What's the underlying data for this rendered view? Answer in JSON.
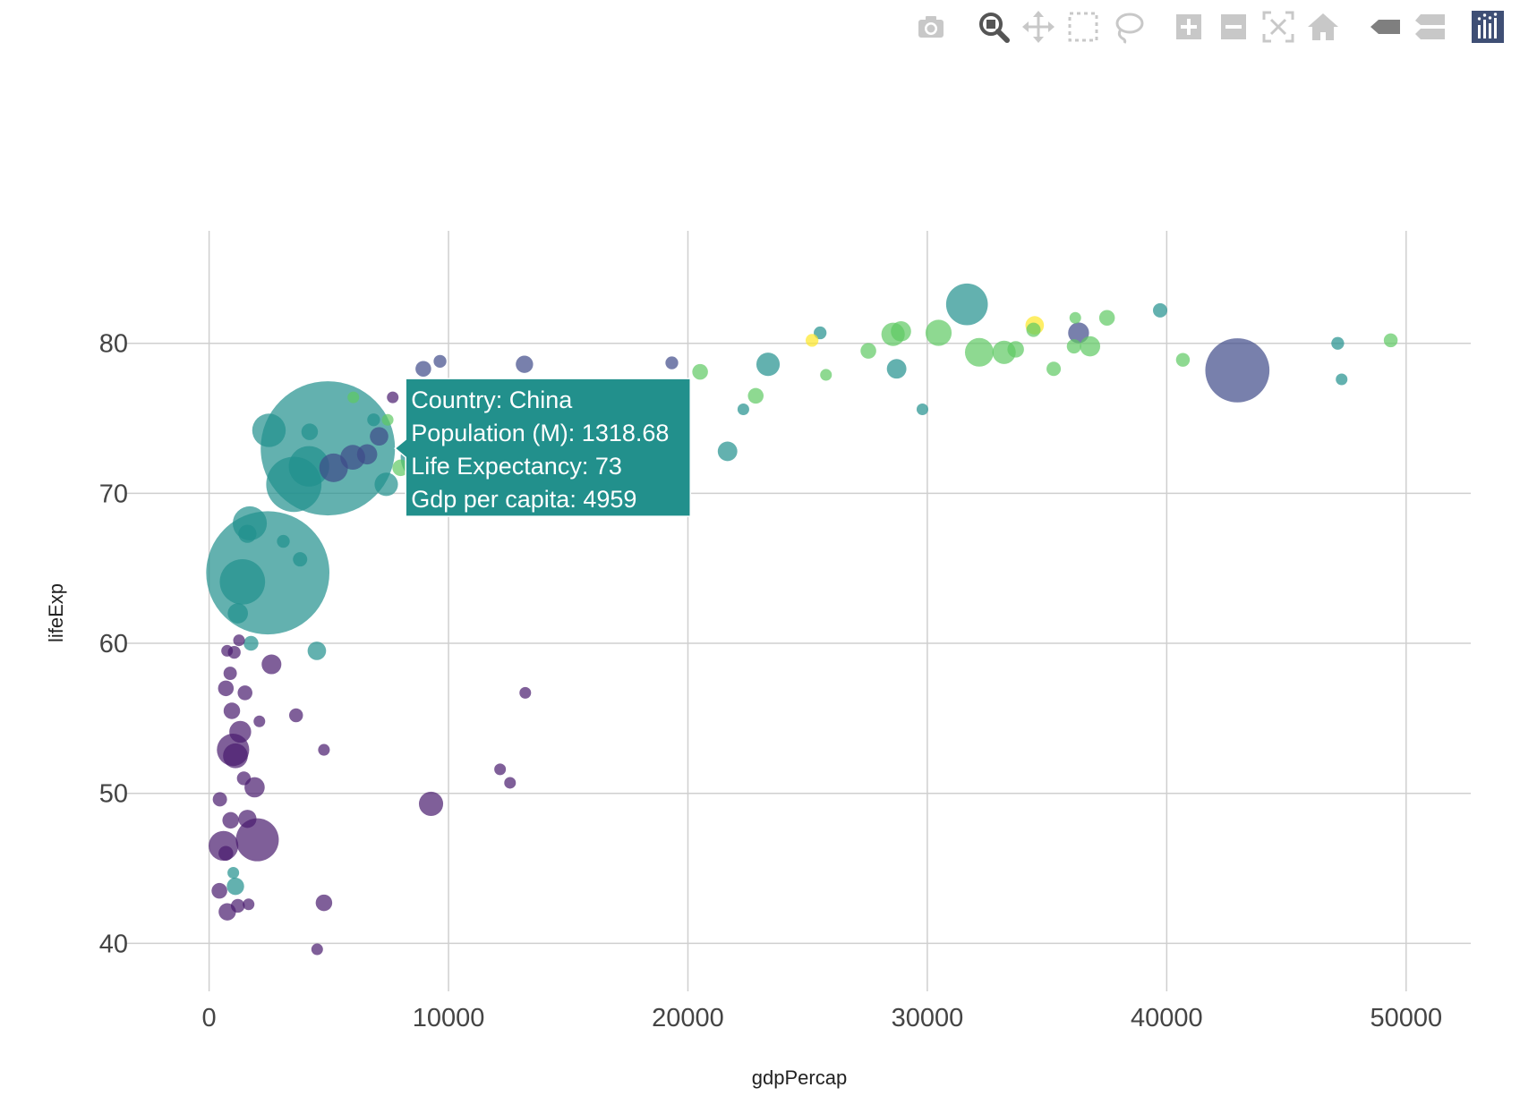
{
  "modebar": {
    "buttons": [
      {
        "name": "camera-icon",
        "title": "Download plot as a png"
      },
      {
        "name": "zoom-icon",
        "title": "Zoom"
      },
      {
        "name": "pan-icon",
        "title": "Pan"
      },
      {
        "name": "box-select-icon",
        "title": "Box Select"
      },
      {
        "name": "lasso-select-icon",
        "title": "Lasso Select"
      },
      {
        "name": "zoom-in-icon",
        "title": "Zoom in"
      },
      {
        "name": "zoom-out-icon",
        "title": "Zoom out"
      },
      {
        "name": "autoscale-icon",
        "title": "Autoscale"
      },
      {
        "name": "reset-axes-icon",
        "title": "Reset axes"
      },
      {
        "name": "hover-closest-icon",
        "title": "Show closest data on hover"
      },
      {
        "name": "hover-compare-icon",
        "title": "Compare data on hover"
      },
      {
        "name": "plotly-logo-icon",
        "title": "Produced with Plotly"
      }
    ]
  },
  "chart_data": {
    "type": "scatter",
    "xlabel": "gdpPercap",
    "ylabel": "lifeExp",
    "xlim": [
      -3500,
      52700
    ],
    "ylim": [
      36.8,
      87.5
    ],
    "xticks": [
      0,
      10000,
      20000,
      30000,
      40000,
      50000
    ],
    "yticks": [
      40,
      50,
      60,
      70,
      80
    ],
    "grid": true,
    "marker_opacity": 0.7,
    "colors": {
      "dark_purple": "#440154",
      "purple": "#481b6d",
      "slate_blue": "#3e4a89",
      "teal": "#21908d",
      "green": "#5ec962",
      "yellow": "#fde725"
    },
    "points": [
      {
        "x": 4959,
        "y": 73.0,
        "size": 1318.68,
        "color": "teal"
      },
      {
        "x": 2452,
        "y": 64.7,
        "size": 1110.4,
        "color": "teal"
      },
      {
        "x": 42952,
        "y": 78.2,
        "size": 301.1,
        "color": "slate_blue"
      },
      {
        "x": 3540,
        "y": 70.6,
        "size": 223.5,
        "color": "teal"
      },
      {
        "x": 9066,
        "y": 72.4,
        "size": 190.0,
        "color": "teal"
      },
      {
        "x": 2606,
        "y": 58.6,
        "size": 28.5,
        "color": "purple"
      },
      {
        "x": 1391,
        "y": 64.1,
        "size": 150.4,
        "color": "teal"
      },
      {
        "x": 4173,
        "y": 71.8,
        "size": 120.0,
        "color": "teal"
      },
      {
        "x": 1700,
        "y": 68.0,
        "size": 85.0,
        "color": "teal"
      },
      {
        "x": 2500,
        "y": 74.2,
        "size": 82.0,
        "color": "teal"
      },
      {
        "x": 31656,
        "y": 82.6,
        "size": 127.5,
        "color": "teal"
      },
      {
        "x": 12057,
        "y": 76.2,
        "size": 103.0,
        "color": "slate_blue"
      },
      {
        "x": 2013,
        "y": 46.9,
        "size": 135.0,
        "color": "purple"
      },
      {
        "x": 1000,
        "y": 52.9,
        "size": 76.5,
        "color": "purple"
      },
      {
        "x": 600,
        "y": 46.5,
        "size": 64.6,
        "color": "purple"
      },
      {
        "x": 1100,
        "y": 52.5,
        "size": 45.0,
        "color": "purple"
      },
      {
        "x": 9270,
        "y": 49.3,
        "size": 43.0,
        "color": "purple"
      },
      {
        "x": 1300,
        "y": 54.1,
        "size": 35.0,
        "color": "purple"
      },
      {
        "x": 1900,
        "y": 50.4,
        "size": 30.0,
        "color": "purple"
      },
      {
        "x": 1600,
        "y": 48.3,
        "size": 24.0,
        "color": "purple"
      },
      {
        "x": 950,
        "y": 55.5,
        "size": 20.0,
        "color": "purple"
      },
      {
        "x": 700,
        "y": 57.0,
        "size": 18.0,
        "color": "purple"
      },
      {
        "x": 1500,
        "y": 56.7,
        "size": 16.0,
        "color": "purple"
      },
      {
        "x": 3632,
        "y": 55.2,
        "size": 14.0,
        "color": "purple"
      },
      {
        "x": 4797,
        "y": 52.9,
        "size": 10.0,
        "color": "purple"
      },
      {
        "x": 4797,
        "y": 42.7,
        "size": 20.0,
        "color": "purple"
      },
      {
        "x": 4513,
        "y": 39.6,
        "size": 8.0,
        "color": "purple"
      },
      {
        "x": 759,
        "y": 42.1,
        "size": 22.0,
        "color": "purple"
      },
      {
        "x": 1200,
        "y": 42.5,
        "size": 14.0,
        "color": "purple"
      },
      {
        "x": 1650,
        "y": 42.6,
        "size": 8.0,
        "color": "purple"
      },
      {
        "x": 430,
        "y": 43.5,
        "size": 18.0,
        "color": "purple"
      },
      {
        "x": 700,
        "y": 46.0,
        "size": 16.0,
        "color": "purple"
      },
      {
        "x": 900,
        "y": 48.2,
        "size": 20.0,
        "color": "purple"
      },
      {
        "x": 450,
        "y": 49.6,
        "size": 15.0,
        "color": "purple"
      },
      {
        "x": 1450,
        "y": 51.0,
        "size": 14.0,
        "color": "purple"
      },
      {
        "x": 12570,
        "y": 50.7,
        "size": 9.0,
        "color": "purple"
      },
      {
        "x": 12154,
        "y": 51.6,
        "size": 7.0,
        "color": "purple"
      },
      {
        "x": 13206,
        "y": 56.7,
        "size": 9.0,
        "color": "purple"
      },
      {
        "x": 880,
        "y": 58.0,
        "size": 13.0,
        "color": "purple"
      },
      {
        "x": 1050,
        "y": 59.4,
        "size": 12.0,
        "color": "purple"
      },
      {
        "x": 1250,
        "y": 60.2,
        "size": 10.0,
        "color": "purple"
      },
      {
        "x": 750,
        "y": 59.5,
        "size": 8.0,
        "color": "purple"
      },
      {
        "x": 2100,
        "y": 54.8,
        "size": 6.0,
        "color": "purple"
      },
      {
        "x": 1010,
        "y": 44.7,
        "size": 10.0,
        "color": "teal"
      },
      {
        "x": 1100,
        "y": 43.8,
        "size": 22.0,
        "color": "teal"
      },
      {
        "x": 4500,
        "y": 59.5,
        "size": 25.0,
        "color": "teal"
      },
      {
        "x": 1750,
        "y": 60.0,
        "size": 16.0,
        "color": "teal"
      },
      {
        "x": 1600,
        "y": 67.3,
        "size": 24.0,
        "color": "teal"
      },
      {
        "x": 1200,
        "y": 62.0,
        "size": 30.0,
        "color": "teal"
      },
      {
        "x": 3800,
        "y": 65.6,
        "size": 15.0,
        "color": "teal"
      },
      {
        "x": 3100,
        "y": 66.8,
        "size": 12.0,
        "color": "teal"
      },
      {
        "x": 4200,
        "y": 74.1,
        "size": 20.0,
        "color": "teal"
      },
      {
        "x": 7400,
        "y": 70.6,
        "size": 40.0,
        "color": "teal"
      },
      {
        "x": 6873,
        "y": 74.9,
        "size": 12.0,
        "color": "teal"
      },
      {
        "x": 21655,
        "y": 72.8,
        "size": 28.0,
        "color": "teal"
      },
      {
        "x": 22316,
        "y": 75.6,
        "size": 10.0,
        "color": "teal"
      },
      {
        "x": 23348,
        "y": 78.6,
        "size": 40.0,
        "color": "teal"
      },
      {
        "x": 25523,
        "y": 80.7,
        "size": 12.0,
        "color": "teal"
      },
      {
        "x": 28718,
        "y": 78.3,
        "size": 28.0,
        "color": "teal"
      },
      {
        "x": 29796,
        "y": 75.6,
        "size": 5.0,
        "color": "teal"
      },
      {
        "x": 39725,
        "y": 82.2,
        "size": 15.0,
        "color": "teal"
      },
      {
        "x": 47143,
        "y": 80.0,
        "size": 12.0,
        "color": "teal"
      },
      {
        "x": 47306,
        "y": 77.6,
        "size": 10.0,
        "color": "teal"
      },
      {
        "x": 5200,
        "y": 71.7,
        "size": 60.0,
        "color": "slate_blue"
      },
      {
        "x": 6000,
        "y": 72.4,
        "size": 45.0,
        "color": "slate_blue"
      },
      {
        "x": 6600,
        "y": 72.6,
        "size": 30.0,
        "color": "slate_blue"
      },
      {
        "x": 7100,
        "y": 73.8,
        "size": 25.0,
        "color": "slate_blue"
      },
      {
        "x": 8948,
        "y": 78.3,
        "size": 18.0,
        "color": "slate_blue"
      },
      {
        "x": 9645,
        "y": 78.8,
        "size": 12.0,
        "color": "slate_blue"
      },
      {
        "x": 13172,
        "y": 78.6,
        "size": 22.0,
        "color": "slate_blue"
      },
      {
        "x": 19328,
        "y": 78.7,
        "size": 12.0,
        "color": "slate_blue"
      },
      {
        "x": 36319,
        "y": 80.7,
        "size": 32.0,
        "color": "slate_blue"
      },
      {
        "x": 7670,
        "y": 76.4,
        "size": 6.0,
        "color": "purple"
      },
      {
        "x": 6025,
        "y": 76.4,
        "size": 10.0,
        "color": "green"
      },
      {
        "x": 7458,
        "y": 74.9,
        "size": 10.0,
        "color": "green"
      },
      {
        "x": 8000,
        "y": 71.7,
        "size": 20.0,
        "color": "green"
      },
      {
        "x": 20510,
        "y": 78.1,
        "size": 18.0,
        "color": "green"
      },
      {
        "x": 22833,
        "y": 76.5,
        "size": 18.0,
        "color": "green"
      },
      {
        "x": 25768,
        "y": 77.9,
        "size": 10.0,
        "color": "green"
      },
      {
        "x": 27538,
        "y": 79.5,
        "size": 18.0,
        "color": "green"
      },
      {
        "x": 28570,
        "y": 80.6,
        "size": 40.0,
        "color": "green"
      },
      {
        "x": 28900,
        "y": 80.8,
        "size": 30.0,
        "color": "green"
      },
      {
        "x": 30470,
        "y": 80.7,
        "size": 50.0,
        "color": "green"
      },
      {
        "x": 32170,
        "y": 79.4,
        "size": 60.0,
        "color": "green"
      },
      {
        "x": 33207,
        "y": 79.4,
        "size": 40.0,
        "color": "green"
      },
      {
        "x": 33692,
        "y": 79.6,
        "size": 20.0,
        "color": "green"
      },
      {
        "x": 34435,
        "y": 80.9,
        "size": 15.0,
        "color": "green"
      },
      {
        "x": 35278,
        "y": 78.3,
        "size": 15.0,
        "color": "green"
      },
      {
        "x": 36126,
        "y": 79.8,
        "size": 15.0,
        "color": "green"
      },
      {
        "x": 36181,
        "y": 81.7,
        "size": 6.0,
        "color": "green"
      },
      {
        "x": 36798,
        "y": 79.8,
        "size": 30.0,
        "color": "green"
      },
      {
        "x": 37506,
        "y": 81.7,
        "size": 18.0,
        "color": "green"
      },
      {
        "x": 40676,
        "y": 78.9,
        "size": 14.0,
        "color": "green"
      },
      {
        "x": 49357,
        "y": 80.2,
        "size": 14.0,
        "color": "green"
      },
      {
        "x": 25185,
        "y": 80.2,
        "size": 12.0,
        "color": "yellow"
      },
      {
        "x": 34484,
        "y": 81.2,
        "size": 25.0,
        "color": "yellow"
      }
    ],
    "tooltip": {
      "lines": [
        "Country: China",
        "Population (M): 1318.68",
        "Life Expectancy: 73",
        "Gdp per capita: 4959"
      ],
      "anchor": {
        "x": 4959,
        "y": 73.0
      },
      "bg_color": "#22908c",
      "border_color": "#ffffff"
    }
  }
}
